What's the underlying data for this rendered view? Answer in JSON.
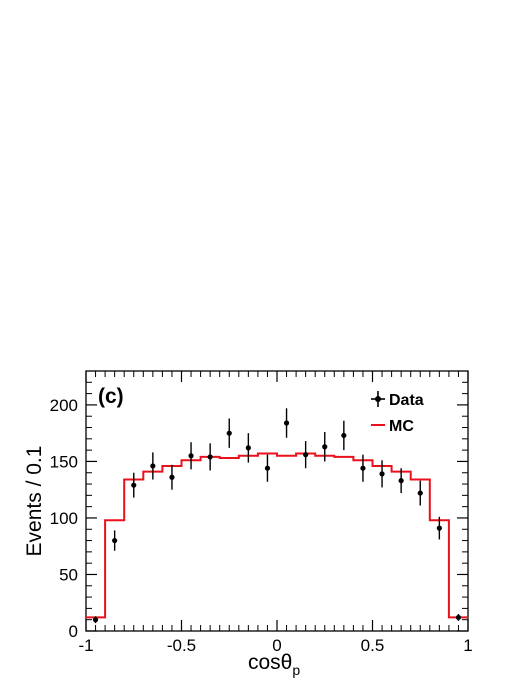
{
  "chart_data": {
    "type": "scatter",
    "panel_label": "(c)",
    "xlabel": "cosθp",
    "xlabel_main": "cosθ",
    "xlabel_sub": "p",
    "ylabel": "Events / 0.1",
    "xlim": [
      -1,
      1
    ],
    "ylim": [
      0,
      230
    ],
    "x_ticks": [
      -1,
      -0.5,
      0,
      0.5,
      1
    ],
    "x_tick_labels": [
      "-1",
      "-0.5",
      "0",
      "0.5",
      "1"
    ],
    "y_ticks": [
      0,
      50,
      100,
      150,
      200
    ],
    "y_tick_labels": [
      "0",
      "50",
      "100",
      "150",
      "200"
    ],
    "legend_position": "top-right",
    "legend": [
      {
        "label": "Data",
        "marker": "point-errorbar",
        "color": "#000000"
      },
      {
        "label": "MC",
        "marker": "line",
        "color": "#e8111c"
      }
    ],
    "series": [
      {
        "name": "Data",
        "color": "#000000",
        "x": [
          -0.95,
          -0.85,
          -0.75,
          -0.65,
          -0.55,
          -0.45,
          -0.35,
          -0.25,
          -0.15,
          -0.05,
          0.05,
          0.15,
          0.25,
          0.35,
          0.45,
          0.55,
          0.65,
          0.75,
          0.85,
          0.95
        ],
        "y": [
          10,
          80,
          129,
          146,
          136,
          155,
          154,
          175,
          162,
          144,
          184,
          156,
          163,
          173,
          144,
          139,
          133,
          122,
          91,
          12
        ],
        "yerr": [
          3,
          9,
          11,
          12,
          11,
          12,
          12,
          13,
          13,
          12,
          13,
          12,
          13,
          13,
          12,
          12,
          11,
          11,
          10,
          3
        ]
      },
      {
        "name": "MC",
        "color": "#e8111c",
        "bin_edges": [
          -1,
          -0.9,
          -0.8,
          -0.7,
          -0.6,
          -0.5,
          -0.4,
          -0.3,
          -0.2,
          -0.1,
          0,
          0.1,
          0.2,
          0.3,
          0.4,
          0.5,
          0.6,
          0.7,
          0.8,
          0.9,
          1
        ],
        "y": [
          12,
          98,
          134,
          141,
          146,
          151,
          154,
          153,
          155,
          157,
          155,
          157,
          155,
          154,
          151,
          146,
          141,
          134,
          98,
          12
        ]
      }
    ]
  }
}
